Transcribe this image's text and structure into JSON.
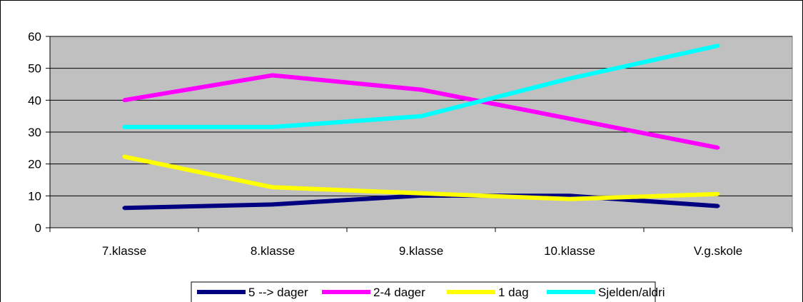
{
  "chart_data": {
    "type": "line",
    "title": "",
    "xlabel": "",
    "ylabel": "",
    "categories": [
      "7.klasse",
      "8.klasse",
      "9.klasse",
      "10.klasse",
      "V.g.skole"
    ],
    "ylim": [
      0,
      60
    ],
    "yticks": [
      0,
      10,
      20,
      30,
      40,
      50,
      60
    ],
    "grid": true,
    "plot_background": "#C0C0C0",
    "legend_position": "bottom",
    "series": [
      {
        "name": "5 --> dager",
        "color": "#000080",
        "values": [
          6.2,
          7.3,
          10.1,
          10.0,
          6.8
        ]
      },
      {
        "name": "2-4 dager",
        "color": "#FF00FF",
        "values": [
          40.0,
          47.8,
          43.3,
          34.2,
          25.1
        ]
      },
      {
        "name": "1 dag",
        "color": "#FFFF00",
        "values": [
          22.3,
          12.7,
          10.8,
          9.0,
          10.6
        ]
      },
      {
        "name": "Sjelden/aldri",
        "color": "#00FFFF",
        "values": [
          31.6,
          31.6,
          35.0,
          46.8,
          57.1
        ]
      }
    ]
  }
}
